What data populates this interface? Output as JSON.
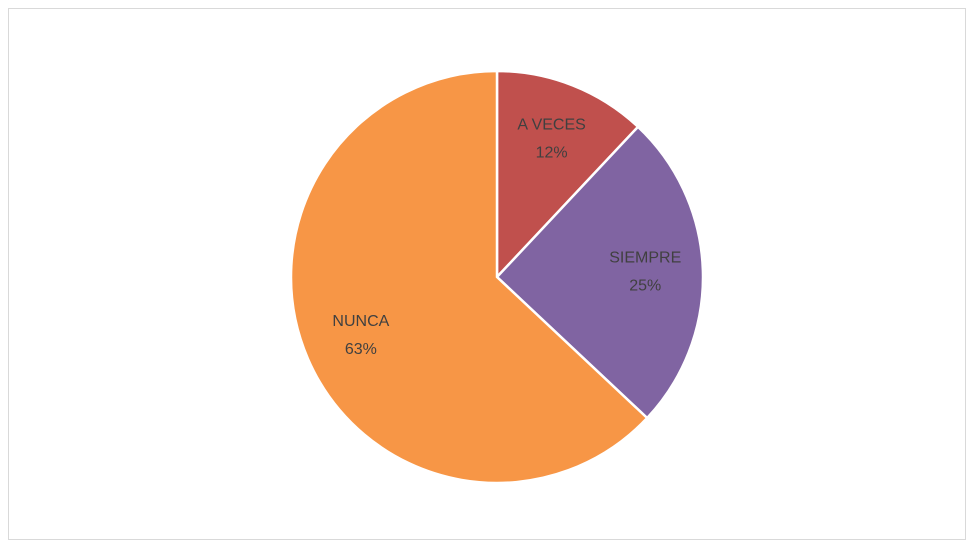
{
  "chart_data": {
    "type": "pie",
    "categories": [
      "A VECES",
      "SIEMPRE",
      "NUNCA"
    ],
    "values": [
      12,
      25,
      63
    ],
    "value_labels": [
      "12%",
      "25%",
      "63%"
    ],
    "colors": [
      "#c0504d",
      "#8064a2",
      "#f79646"
    ]
  }
}
